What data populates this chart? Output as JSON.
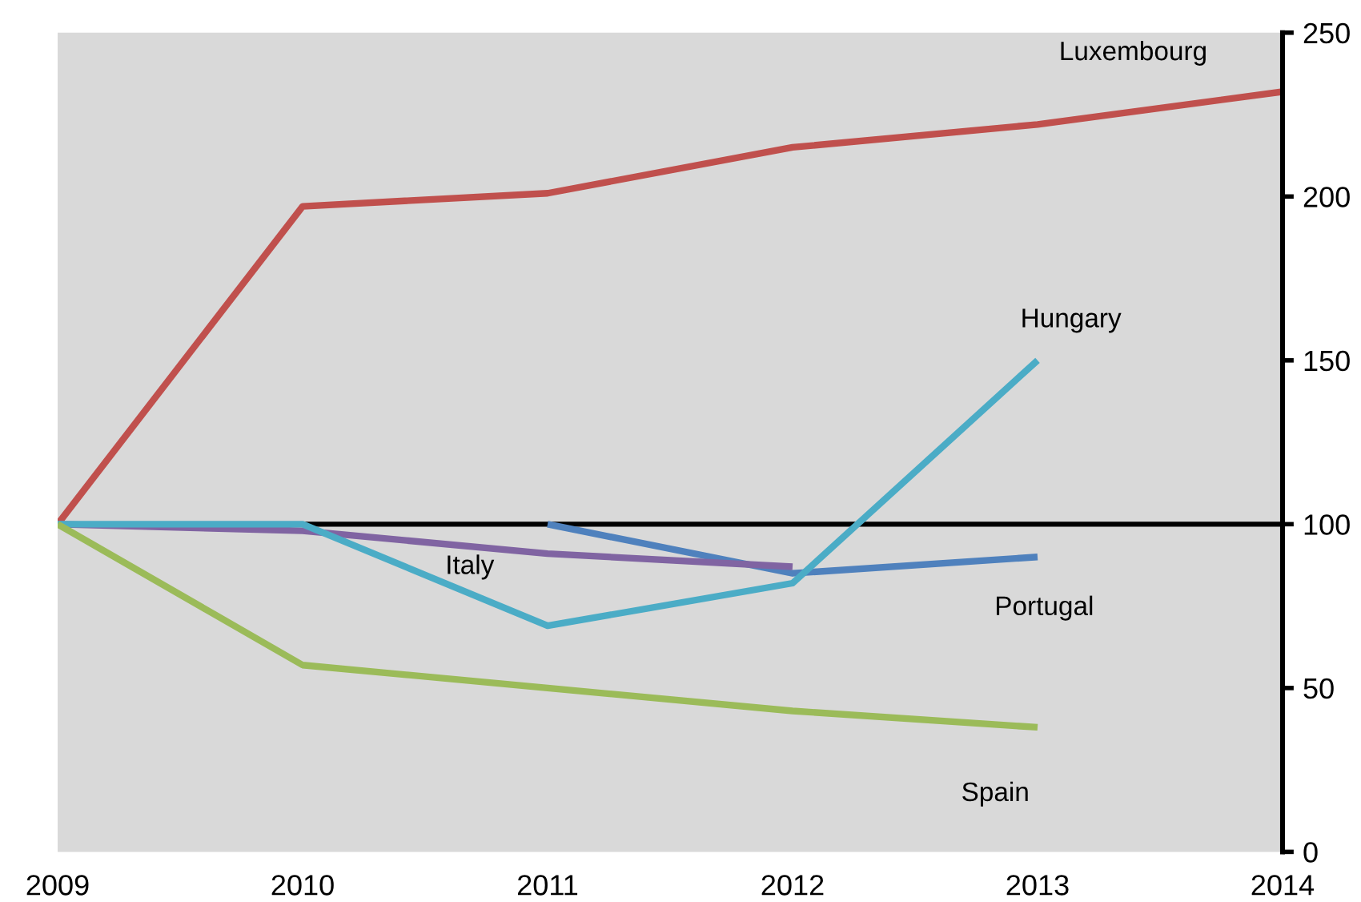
{
  "chart_data": {
    "type": "line",
    "x": [
      2009,
      2010,
      2011,
      2012,
      2013,
      2014
    ],
    "xlim": [
      2009,
      2014
    ],
    "xticks": [
      2009,
      2010,
      2011,
      2012,
      2013,
      2014
    ],
    "ylim": [
      0,
      250
    ],
    "yticks": [
      0,
      50,
      100,
      150,
      200,
      250
    ],
    "ref_lines": [
      {
        "axis": "y",
        "value": 100,
        "color": "#000000"
      }
    ],
    "series": [
      {
        "name": "Luxembourg",
        "color": "#c0504d",
        "values": [
          100,
          197,
          201,
          215,
          222,
          232
        ]
      },
      {
        "name": "Portugal",
        "color": "#4f81bd",
        "values": [
          null,
          null,
          100,
          85,
          90,
          null
        ]
      },
      {
        "name": "Italy",
        "color": "#8064a2",
        "values": [
          100,
          98,
          91,
          87,
          null,
          null
        ]
      },
      {
        "name": "Hungary",
        "color": "#4bacc6",
        "values": [
          100,
          100,
          69,
          82,
          150,
          null
        ]
      },
      {
        "name": "Spain",
        "color": "#9bbb59",
        "values": [
          100,
          57,
          50,
          43,
          38,
          null
        ]
      }
    ]
  }
}
